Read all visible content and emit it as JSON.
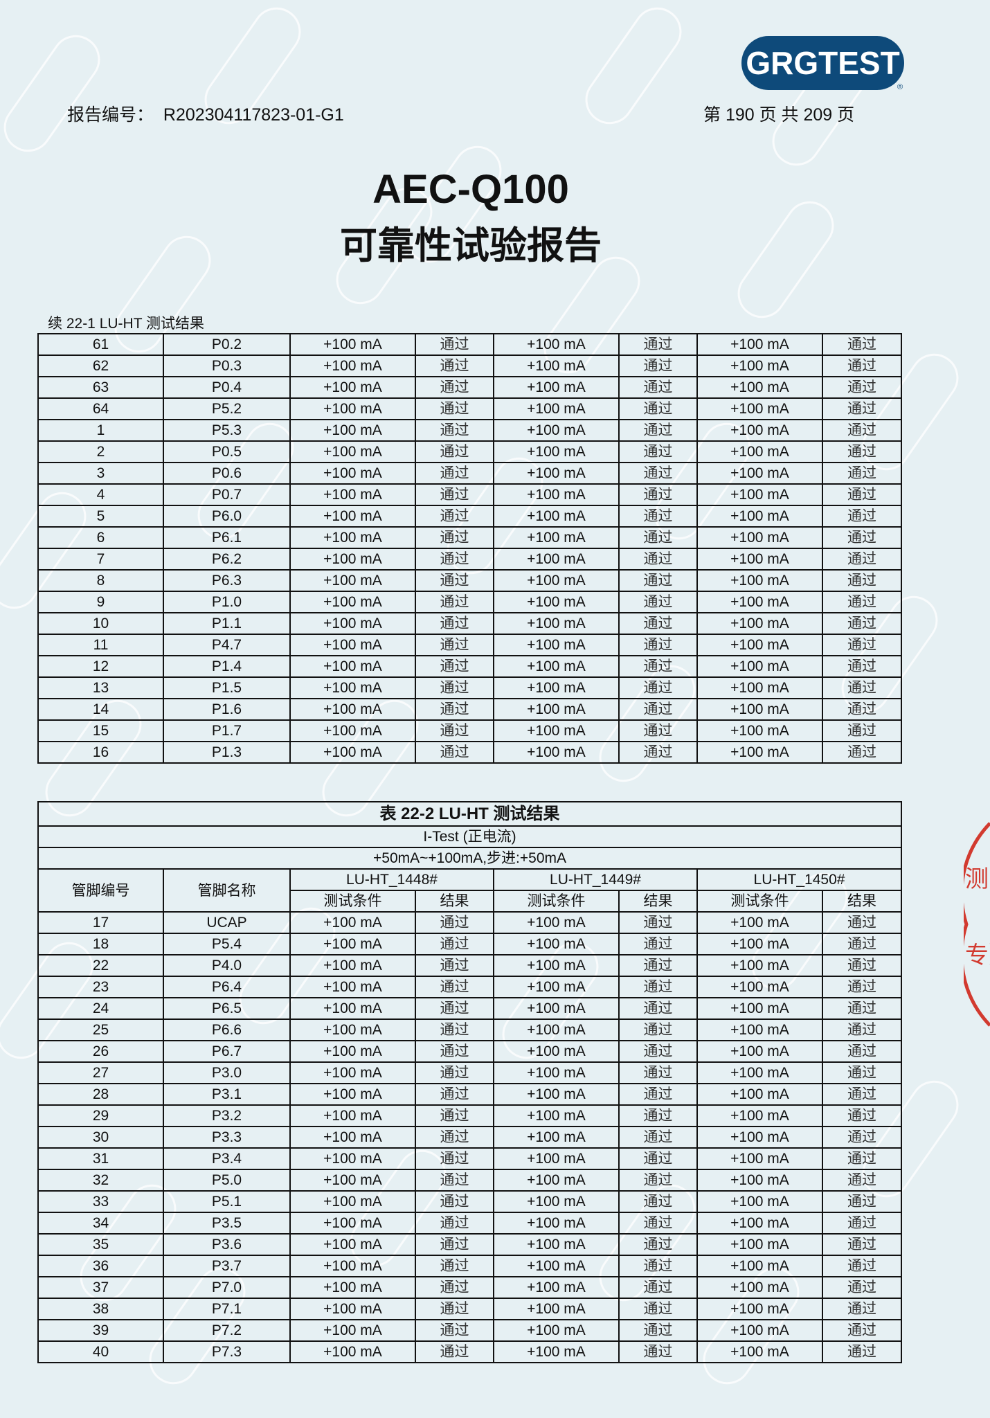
{
  "header": {
    "logo_text": "GRGTEST",
    "report_no_label": "报告编号：",
    "report_no": "R202304117823-01-G1",
    "page_info": "第 190 页 共 209 页"
  },
  "title": {
    "line1": "AEC-Q100",
    "line2": "可靠性试验报告"
  },
  "watermark_text": "GRGTEST",
  "stamp_text": "测专）",
  "table1": {
    "caption": "续 22-1 LU-HT 测试结果",
    "rows": [
      [
        "61",
        "P0.2"
      ],
      [
        "62",
        "P0.3"
      ],
      [
        "63",
        "P0.4"
      ],
      [
        "64",
        "P5.2"
      ],
      [
        "1",
        "P5.3"
      ],
      [
        "2",
        "P0.5"
      ],
      [
        "3",
        "P0.6"
      ],
      [
        "4",
        "P0.7"
      ],
      [
        "5",
        "P6.0"
      ],
      [
        "6",
        "P6.1"
      ],
      [
        "7",
        "P6.2"
      ],
      [
        "8",
        "P6.3"
      ],
      [
        "9",
        "P1.0"
      ],
      [
        "10",
        "P1.1"
      ],
      [
        "11",
        "P4.7"
      ],
      [
        "12",
        "P1.4"
      ],
      [
        "13",
        "P1.5"
      ],
      [
        "14",
        "P1.6"
      ],
      [
        "15",
        "P1.7"
      ],
      [
        "16",
        "P1.3"
      ]
    ]
  },
  "table2": {
    "title": "表 22-2 LU-HT 测试结果",
    "subtitle": "I-Test (正电流)",
    "condition": "+50mA~+100mA,步进:+50mA",
    "col_pin_no": "管脚编号",
    "col_pin_name": "管脚名称",
    "samples": [
      "LU-HT_1448#",
      "LU-HT_1449#",
      "LU-HT_1450#"
    ],
    "sub_cond": "测试条件",
    "sub_result": "结果",
    "rows": [
      [
        "17",
        "UCAP"
      ],
      [
        "18",
        "P5.4"
      ],
      [
        "22",
        "P4.0"
      ],
      [
        "23",
        "P6.4"
      ],
      [
        "24",
        "P6.5"
      ],
      [
        "25",
        "P6.6"
      ],
      [
        "26",
        "P6.7"
      ],
      [
        "27",
        "P3.0"
      ],
      [
        "28",
        "P3.1"
      ],
      [
        "29",
        "P3.2"
      ],
      [
        "30",
        "P3.3"
      ],
      [
        "31",
        "P3.4"
      ],
      [
        "32",
        "P5.0"
      ],
      [
        "33",
        "P5.1"
      ],
      [
        "34",
        "P3.5"
      ],
      [
        "35",
        "P3.6"
      ],
      [
        "36",
        "P3.7"
      ],
      [
        "37",
        "P7.0"
      ],
      [
        "38",
        "P7.1"
      ],
      [
        "39",
        "P7.2"
      ],
      [
        "40",
        "P7.3"
      ]
    ]
  },
  "cell_condition": "+100 mA",
  "cell_result": "通过",
  "colors": {
    "logo": "#0e4a7a",
    "stamp": "#d23a2f",
    "background": "#e6f0f3"
  }
}
